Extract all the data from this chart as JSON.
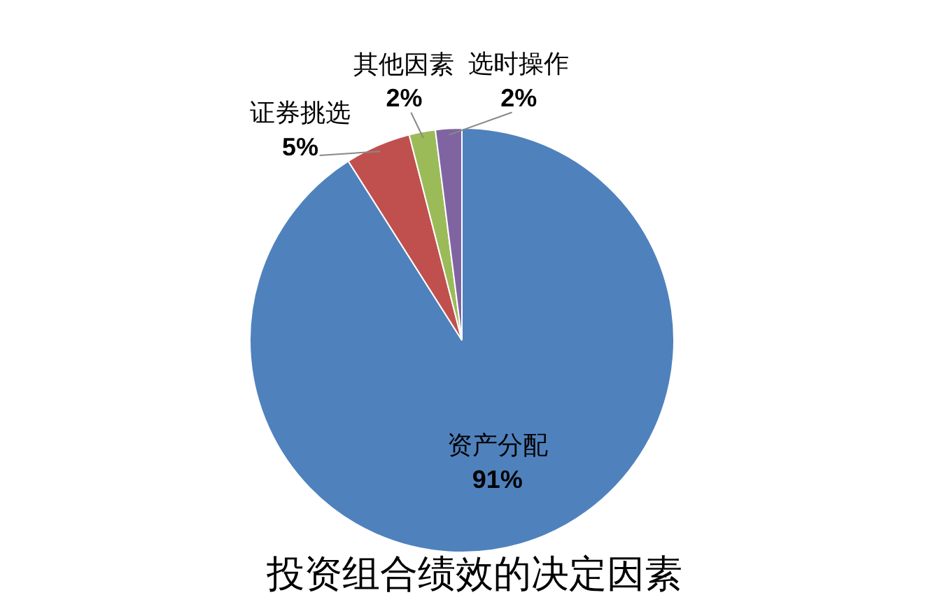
{
  "chart_data": {
    "type": "pie",
    "title": "投资组合绩效的决定因素",
    "categories": [
      "资产分配",
      "证券挑选",
      "其他因素",
      "选时操作"
    ],
    "values": [
      91,
      5,
      2,
      2
    ],
    "value_labels": [
      "91%",
      "5%",
      "2%",
      "2%"
    ],
    "colors": [
      "#4f81bd",
      "#c0504d",
      "#9bbb59",
      "#8064a2"
    ]
  }
}
